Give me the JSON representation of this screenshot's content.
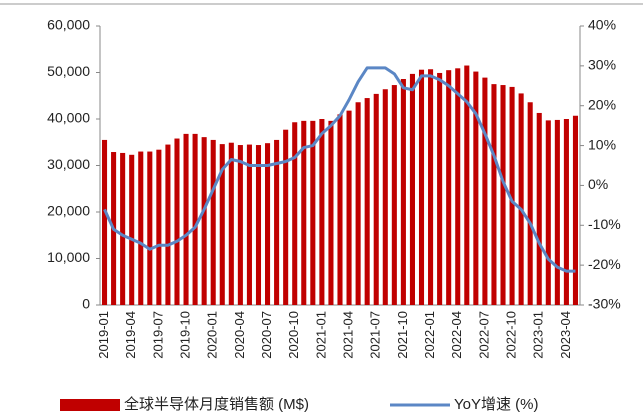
{
  "chart_data": {
    "type": "bar_line",
    "categories": [
      "2019-01",
      null,
      null,
      "2019-04",
      null,
      null,
      "2019-07",
      null,
      null,
      "2019-10",
      null,
      null,
      "2020-01",
      null,
      null,
      "2020-04",
      null,
      null,
      "2020-07",
      null,
      null,
      "2020-10",
      null,
      null,
      "2021-01",
      null,
      null,
      "2021-04",
      null,
      null,
      "2021-07",
      null,
      null,
      "2021-10",
      null,
      null,
      "2022-01",
      null,
      null,
      "2022-04",
      null,
      null,
      "2022-07",
      null,
      null,
      "2022-10",
      null,
      null,
      "2023-01",
      null,
      null,
      "2023-04",
      null
    ],
    "series": [
      {
        "name": "全球半导体月度销售额 (M$)",
        "color": "#c00000",
        "axis": "y",
        "values": [
          35500,
          32900,
          32700,
          32300,
          33000,
          33000,
          33400,
          34500,
          35800,
          36800,
          36800,
          36100,
          35500,
          34600,
          34900,
          34400,
          34500,
          34400,
          34800,
          35500,
          37700,
          39300,
          39600,
          39600,
          40000,
          39600,
          41000,
          41800,
          43600,
          44500,
          45400,
          46400,
          47300,
          48600,
          49700,
          50600,
          50700,
          49900,
          50500,
          50900,
          51500,
          50200,
          48900,
          47500,
          47300,
          46900,
          45500,
          43600,
          41300,
          39700,
          39800,
          40000,
          40700
        ]
      },
      {
        "name": "YoY增速 (%)",
        "color": "#5b87c5",
        "axis": "y2",
        "values": [
          -6,
          -11,
          -12.5,
          -13.5,
          -14.5,
          -16,
          -15,
          -15,
          -14,
          -12.5,
          -10.5,
          -6,
          -1,
          4,
          6.5,
          6,
          5,
          5,
          5,
          5.5,
          6,
          7,
          9.5,
          10,
          13,
          15,
          17.5,
          21.5,
          26,
          29.5,
          29.5,
          29.5,
          28,
          24.5,
          24,
          27.5,
          27.5,
          26.5,
          25,
          23,
          21,
          18,
          13,
          7.5,
          1,
          -4,
          -6,
          -9.5,
          -14.5,
          -18.5,
          -20.5,
          -21.5,
          -21.5
        ]
      }
    ],
    "ylim": [
      0,
      60000
    ],
    "yticks": [
      0,
      {
        "value": 10000,
        "label": "10,000"
      },
      {
        "value": 20000,
        "label": "20,000"
      },
      {
        "value": 30000,
        "label": "30,000"
      },
      {
        "value": 40000,
        "label": "40,000"
      },
      {
        "value": 50000,
        "label": "50,000"
      },
      {
        "value": 60000,
        "label": "60,000"
      }
    ],
    "y2lim": [
      -30,
      40
    ],
    "y2ticks": [
      {
        "value": -30,
        "label": "-30%"
      },
      {
        "value": -20,
        "label": "-20%"
      },
      {
        "value": -10,
        "label": "-10%"
      },
      {
        "value": 0,
        "label": "0%"
      },
      {
        "value": 10,
        "label": "10%"
      },
      {
        "value": 20,
        "label": "20%"
      },
      {
        "value": 30,
        "label": "30%"
      },
      {
        "value": 40,
        "label": "40%"
      }
    ],
    "grid": false,
    "legend": "bottom"
  }
}
